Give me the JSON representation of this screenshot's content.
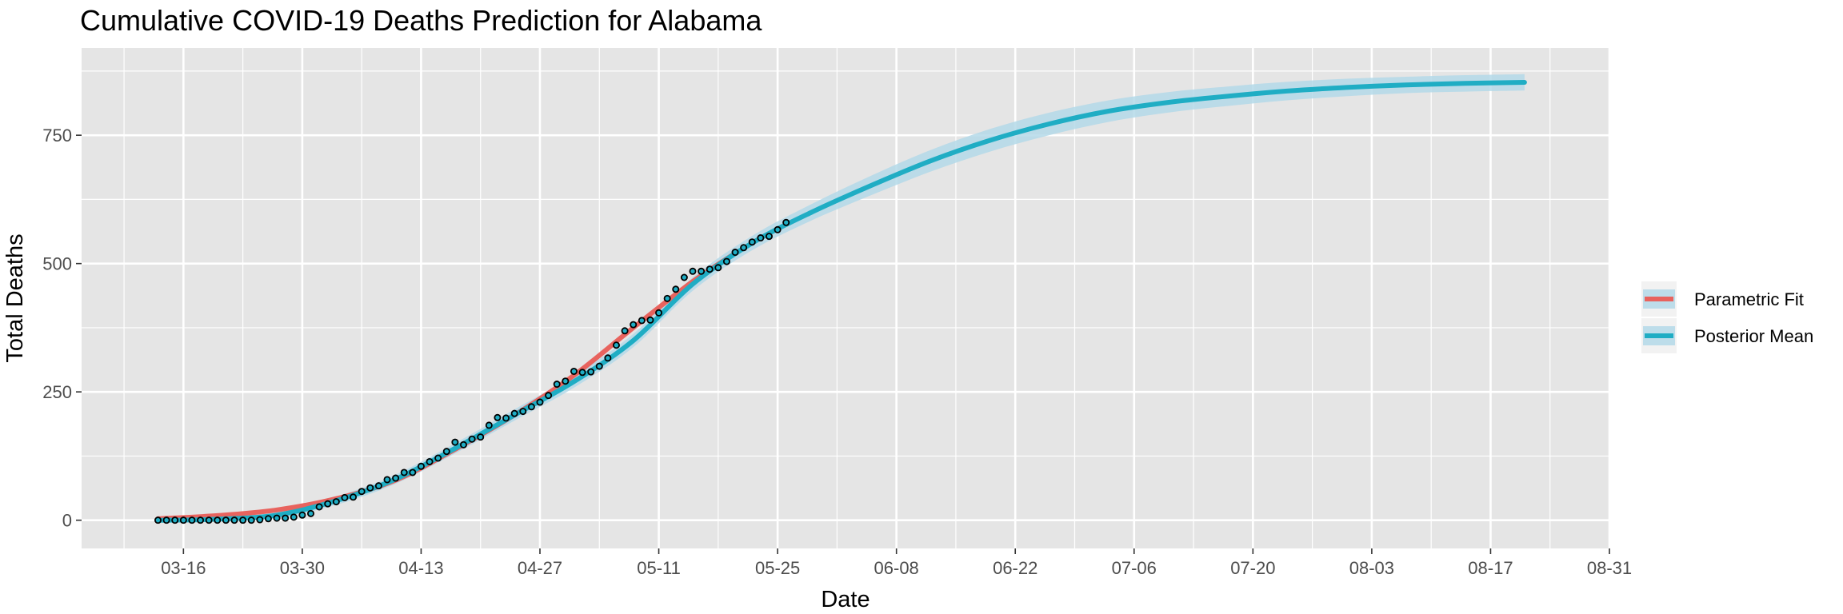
{
  "chart_data": {
    "type": "line",
    "title": "Cumulative COVID-19 Deaths Prediction for Alabama",
    "xlabel": "Date",
    "ylabel": "Total Deaths",
    "x_axis": {
      "type": "date",
      "year": 2020,
      "range": [
        "2020-03-04",
        "2020-08-31"
      ],
      "tick_values": [
        "2020-03-16",
        "2020-03-30",
        "2020-04-13",
        "2020-04-27",
        "2020-05-11",
        "2020-05-25",
        "2020-06-08",
        "2020-06-22",
        "2020-07-06",
        "2020-07-20",
        "2020-08-03",
        "2020-08-17",
        "2020-08-31"
      ],
      "tick_labels": [
        "03-16",
        "03-30",
        "04-13",
        "04-27",
        "05-11",
        "05-25",
        "06-08",
        "06-22",
        "07-06",
        "07-20",
        "08-03",
        "08-17",
        "08-31"
      ]
    },
    "y_axis": {
      "range": [
        -55,
        920
      ],
      "tick_values": [
        0,
        250,
        500,
        750
      ],
      "tick_labels": [
        "0",
        "250",
        "500",
        "750"
      ]
    },
    "grid": true,
    "legend_position": "right",
    "colors": {
      "panel": "#e5e5e5",
      "grid": "#ffffff",
      "parametric": "#e8635e",
      "posterior": "#1fadc4",
      "band": "#b4d9e9",
      "point_fill": "#1fadc4",
      "point_stroke": "#000000"
    },
    "series": [
      {
        "name": "Parametric Fit",
        "x": [
          "2020-03-13",
          "2020-03-20",
          "2020-03-27",
          "2020-04-03",
          "2020-04-10",
          "2020-04-17",
          "2020-04-24",
          "2020-05-01",
          "2020-05-08",
          "2020-05-15",
          "2020-05-20"
        ],
        "y": [
          3,
          9,
          20,
          42,
          78,
          138,
          205,
          282,
          375,
          465,
          520
        ]
      },
      {
        "name": "Posterior Mean",
        "x": [
          "2020-03-13",
          "2020-03-20",
          "2020-03-27",
          "2020-04-03",
          "2020-04-10",
          "2020-04-17",
          "2020-04-24",
          "2020-05-01",
          "2020-05-08",
          "2020-05-15",
          "2020-05-22",
          "2020-05-29",
          "2020-06-05",
          "2020-06-12",
          "2020-06-19",
          "2020-06-26",
          "2020-07-03",
          "2020-07-10",
          "2020-07-17",
          "2020-07-24",
          "2020-07-31",
          "2020-08-07",
          "2020-08-14",
          "2020-08-21"
        ],
        "y": [
          0,
          2,
          10,
          38,
          80,
          140,
          205,
          270,
          350,
          460,
          540,
          600,
          652,
          700,
          740,
          772,
          797,
          814,
          826,
          836,
          843,
          848,
          851,
          853
        ],
        "band_halfwidth": [
          0,
          3,
          6,
          8,
          9,
          10,
          11,
          12,
          13,
          13,
          14,
          16,
          19,
          21,
          22,
          22,
          21,
          20,
          19,
          18,
          17,
          16,
          16,
          16
        ]
      }
    ],
    "observed": {
      "start_date": "2020-03-13",
      "values": [
        0,
        0,
        0,
        0,
        0,
        0,
        0,
        0,
        0,
        0,
        0,
        0,
        1,
        3,
        4,
        4,
        6,
        10,
        13,
        26,
        32,
        36,
        44,
        45,
        56,
        63,
        67,
        79,
        82,
        93,
        93,
        105,
        114,
        121,
        134,
        152,
        147,
        158,
        162,
        185,
        200,
        199,
        208,
        212,
        221,
        230,
        243,
        265,
        271,
        290,
        288,
        289,
        300,
        316,
        341,
        369,
        381,
        389,
        390,
        404,
        432,
        450,
        473,
        485,
        485,
        489,
        492,
        504,
        522,
        531,
        542,
        550,
        553,
        566,
        580
      ]
    }
  },
  "legend": {
    "items": [
      {
        "label": "Parametric Fit",
        "color_key": "parametric"
      },
      {
        "label": "Posterior Mean",
        "color_key": "posterior"
      }
    ]
  }
}
